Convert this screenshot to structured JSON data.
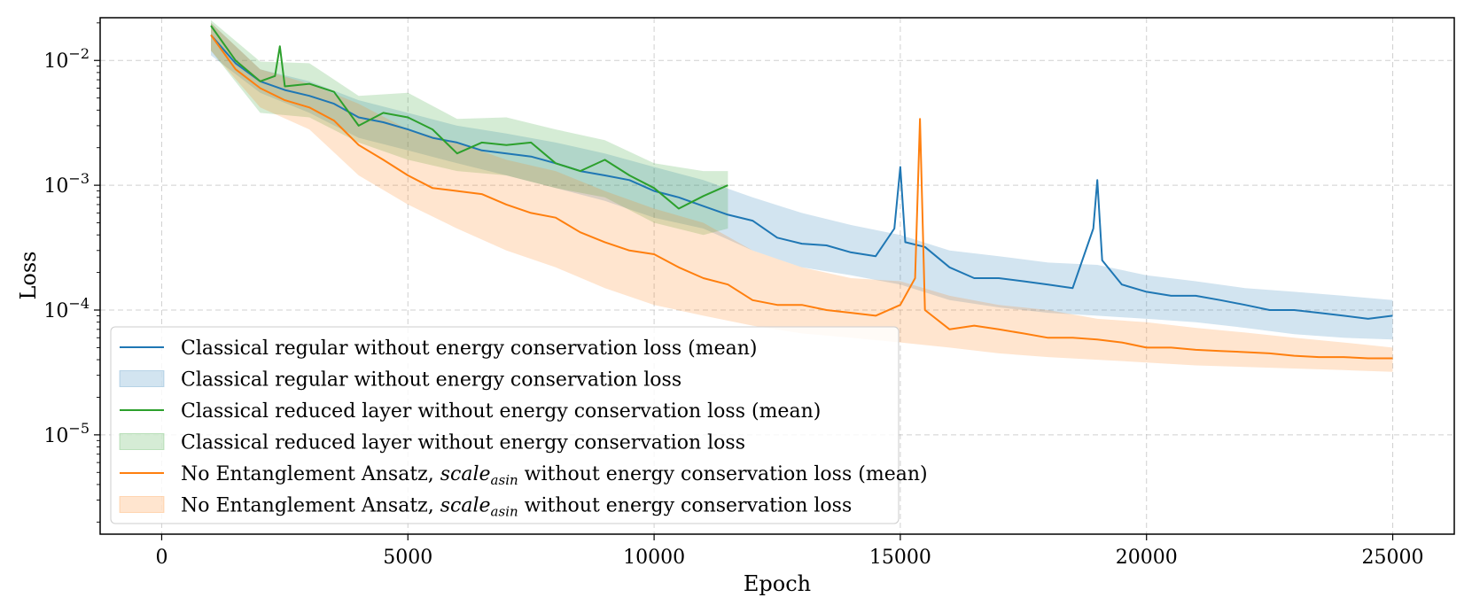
{
  "chart_data": {
    "type": "line",
    "title": "",
    "xlabel": "Epoch",
    "ylabel": "Loss",
    "xlim": [
      -1250,
      26250
    ],
    "ylim": [
      1.6e-06,
      0.022
    ],
    "yscale": "log",
    "grid": true,
    "legend_placement": "lower-left",
    "x_ticks": [
      0,
      5000,
      10000,
      15000,
      20000,
      25000
    ],
    "x_tick_labels": [
      "0",
      "5000",
      "10000",
      "15000",
      "20000",
      "25000"
    ],
    "y_ticks": [
      1e-05,
      0.0001,
      0.001,
      0.01
    ],
    "y_tick_labels": [
      {
        "base": "10",
        "exp": "−5"
      },
      {
        "base": "10",
        "exp": "−4"
      },
      {
        "base": "10",
        "exp": "−3"
      },
      {
        "base": "10",
        "exp": "−2"
      }
    ],
    "colors": {
      "blue": "#1f77b4",
      "green": "#2ca02c",
      "orange": "#ff7f0e"
    },
    "legend": [
      {
        "kind": "line",
        "color": "#1f77b4",
        "parts": [
          {
            "t": "Classical regular without energy conservation loss (mean)"
          }
        ]
      },
      {
        "kind": "band",
        "color": "#1f77b4",
        "parts": [
          {
            "t": "Classical regular without energy conservation loss"
          }
        ]
      },
      {
        "kind": "line",
        "color": "#2ca02c",
        "parts": [
          {
            "t": "Classical reduced layer without energy conservation loss (mean)"
          }
        ]
      },
      {
        "kind": "band",
        "color": "#2ca02c",
        "parts": [
          {
            "t": "Classical reduced layer without energy conservation loss"
          }
        ]
      },
      {
        "kind": "line",
        "color": "#ff7f0e",
        "parts": [
          {
            "t": "No Entanglement Ansatz, "
          },
          {
            "t": "scale",
            "it": true
          },
          {
            "t": "asin",
            "it": true,
            "sub": true
          },
          {
            "t": " without energy conservation loss (mean)"
          }
        ]
      },
      {
        "kind": "band",
        "color": "#ff7f0e",
        "parts": [
          {
            "t": "No Entanglement Ansatz, "
          },
          {
            "t": "scale",
            "it": true
          },
          {
            "t": "asin",
            "it": true,
            "sub": true
          },
          {
            "t": " without energy conservation loss"
          }
        ]
      }
    ],
    "series": [
      {
        "name": "Classical regular without energy conservation loss (mean)",
        "color": "#1f77b4",
        "x": [
          1000,
          1500,
          2000,
          2500,
          3000,
          3500,
          4000,
          4500,
          5000,
          5500,
          6000,
          6500,
          7000,
          7500,
          8000,
          8500,
          9000,
          9500,
          10000,
          10500,
          11000,
          11500,
          12000,
          12500,
          13000,
          13500,
          14000,
          14500,
          14880,
          15000,
          15100,
          15500,
          16000,
          16500,
          17000,
          17500,
          18000,
          18500,
          18920,
          19000,
          19100,
          19500,
          20000,
          20500,
          21000,
          21500,
          22000,
          22500,
          23000,
          23500,
          24000,
          24500,
          25000
        ],
        "y": [
          0.016,
          0.0095,
          0.0068,
          0.0058,
          0.0052,
          0.0045,
          0.0035,
          0.0032,
          0.0028,
          0.0024,
          0.0022,
          0.0019,
          0.0018,
          0.0017,
          0.0015,
          0.0013,
          0.0012,
          0.0011,
          0.0009,
          0.0008,
          0.00068,
          0.00058,
          0.00052,
          0.00038,
          0.00034,
          0.00033,
          0.00029,
          0.00027,
          0.00045,
          0.0014,
          0.00035,
          0.00032,
          0.00022,
          0.00018,
          0.00018,
          0.00017,
          0.00016,
          0.00015,
          0.00045,
          0.0011,
          0.00025,
          0.00016,
          0.00014,
          0.00013,
          0.00013,
          0.00012,
          0.00011,
          0.0001,
          0.0001,
          9.5e-05,
          9e-05,
          8.5e-05,
          9e-05
        ]
      },
      {
        "name": "Classical regular without energy conservation loss",
        "color": "#1f77b4",
        "band": true,
        "x": [
          1000,
          2000,
          3000,
          4000,
          5000,
          6000,
          7000,
          8000,
          9000,
          10000,
          11000,
          12000,
          13000,
          14000,
          15000,
          16000,
          17000,
          18000,
          19000,
          20000,
          21000,
          22000,
          23000,
          24000,
          25000
        ],
        "low": [
          0.011,
          0.0055,
          0.0038,
          0.0024,
          0.0019,
          0.0015,
          0.0012,
          0.00095,
          0.00075,
          0.00055,
          0.00045,
          0.0003,
          0.00022,
          0.00019,
          0.00016,
          0.00012,
          0.000105,
          9.5e-05,
          9e-05,
          8.5e-05,
          8e-05,
          7.2e-05,
          6.4e-05,
          6e-05,
          5.8e-05
        ],
        "high": [
          0.02,
          0.0085,
          0.0068,
          0.0048,
          0.0038,
          0.003,
          0.0026,
          0.0022,
          0.0018,
          0.0014,
          0.0011,
          0.0008,
          0.0006,
          0.00048,
          0.0004,
          0.0003,
          0.00027,
          0.00024,
          0.00023,
          0.00019,
          0.00017,
          0.00015,
          0.00014,
          0.00013,
          0.00012
        ]
      },
      {
        "name": "Classical reduced layer without energy conservation loss (mean)",
        "color": "#2ca02c",
        "x": [
          1000,
          1500,
          2000,
          2300,
          2400,
          2500,
          3000,
          3500,
          4000,
          4500,
          5000,
          5500,
          6000,
          6500,
          7000,
          7500,
          8000,
          8500,
          9000,
          9500,
          10000,
          10500,
          11000,
          11500
        ],
        "y": [
          0.019,
          0.01,
          0.0068,
          0.0075,
          0.013,
          0.0062,
          0.0065,
          0.0056,
          0.003,
          0.0038,
          0.0035,
          0.0028,
          0.0018,
          0.0022,
          0.0021,
          0.0022,
          0.0015,
          0.0013,
          0.0016,
          0.0012,
          0.00095,
          0.00065,
          0.00082,
          0.001
        ]
      },
      {
        "name": "Classical reduced layer without energy conservation loss",
        "color": "#2ca02c",
        "band": true,
        "x": [
          1000,
          2000,
          3000,
          4000,
          5000,
          6000,
          7000,
          8000,
          9000,
          10000,
          11000,
          11500
        ],
        "low": [
          0.012,
          0.0038,
          0.0035,
          0.0022,
          0.0016,
          0.0013,
          0.0012,
          0.00095,
          0.0008,
          0.0005,
          0.0004,
          0.00045
        ],
        "high": [
          0.021,
          0.0098,
          0.0095,
          0.0052,
          0.0055,
          0.0034,
          0.0035,
          0.0028,
          0.0023,
          0.0015,
          0.0013,
          0.0013
        ]
      },
      {
        "name": "No Entanglement Ansatz, scale_asin without energy conservation loss (mean)",
        "color": "#ff7f0e",
        "x": [
          1000,
          1500,
          2000,
          2500,
          3000,
          3500,
          4000,
          4500,
          5000,
          5500,
          6000,
          6500,
          7000,
          7500,
          8000,
          8500,
          9000,
          9500,
          10000,
          10500,
          11000,
          11500,
          12000,
          12500,
          13000,
          13500,
          14000,
          14500,
          15000,
          15300,
          15400,
          15500,
          16000,
          16500,
          17000,
          17500,
          18000,
          18500,
          19000,
          19500,
          20000,
          20500,
          21000,
          21500,
          22000,
          22500,
          23000,
          23500,
          24000,
          24500,
          25000
        ],
        "y": [
          0.016,
          0.0085,
          0.006,
          0.0048,
          0.0042,
          0.0033,
          0.0021,
          0.0016,
          0.0012,
          0.00095,
          0.0009,
          0.00085,
          0.0007,
          0.0006,
          0.00055,
          0.00042,
          0.00035,
          0.0003,
          0.00028,
          0.00022,
          0.00018,
          0.00016,
          0.00012,
          0.00011,
          0.00011,
          0.0001,
          9.5e-05,
          9e-05,
          0.00011,
          0.00018,
          0.0034,
          0.0001,
          7e-05,
          7.5e-05,
          7e-05,
          6.5e-05,
          6e-05,
          6e-05,
          5.8e-05,
          5.5e-05,
          5e-05,
          5e-05,
          4.8e-05,
          4.7e-05,
          4.6e-05,
          4.5e-05,
          4.3e-05,
          4.2e-05,
          4.2e-05,
          4.1e-05,
          4.1e-05
        ]
      },
      {
        "name": "No Entanglement Ansatz, scale_asin without energy conservation loss",
        "color": "#ff7f0e",
        "band": true,
        "x": [
          1000,
          2000,
          3000,
          4000,
          5000,
          6000,
          7000,
          8000,
          9000,
          10000,
          11000,
          12000,
          13000,
          14000,
          15000,
          16000,
          17000,
          18000,
          19000,
          20000,
          21000,
          22000,
          23000,
          24000,
          25000
        ],
        "low": [
          0.012,
          0.0042,
          0.0028,
          0.0012,
          0.0007,
          0.00045,
          0.0003,
          0.00022,
          0.00015,
          0.00011,
          9e-05,
          7.5e-05,
          6.5e-05,
          6e-05,
          5.5e-05,
          5e-05,
          4.5e-05,
          4.2e-05,
          4e-05,
          3.8e-05,
          3.6e-05,
          3.5e-05,
          3.4e-05,
          3.3e-05,
          3.2e-05
        ],
        "high": [
          0.02,
          0.0085,
          0.0065,
          0.0045,
          0.0028,
          0.0022,
          0.0016,
          0.0013,
          0.0009,
          0.00065,
          0.0005,
          0.0003,
          0.00022,
          0.00018,
          0.00017,
          0.00013,
          0.00011,
          0.0001,
          8.5e-05,
          8e-05,
          7.2e-05,
          6.6e-05,
          6e-05,
          5.5e-05,
          5e-05
        ]
      }
    ]
  }
}
